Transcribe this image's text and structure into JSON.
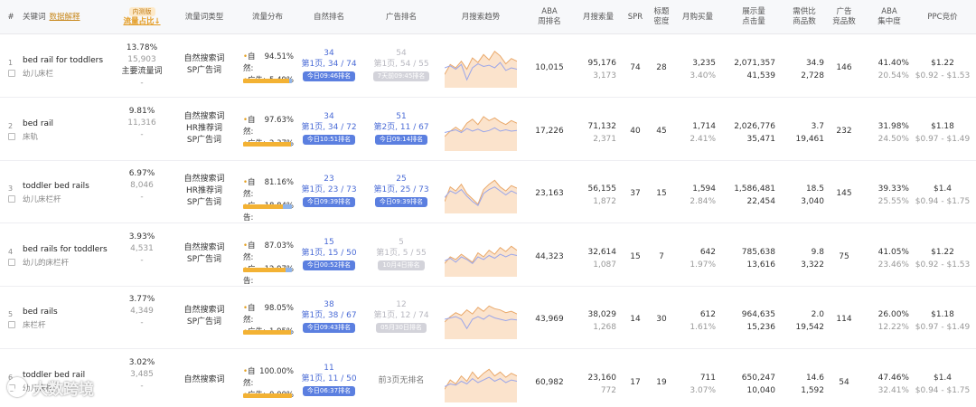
{
  "headers": {
    "idx": "#",
    "keyword": "关键词",
    "keyword_link": "数据解释",
    "new_tag": "内测版",
    "share": "流量占比↓",
    "types": "流量词类型",
    "dist": "流量分布",
    "natural_rank": "自然排名",
    "ad_rank": "广告排名",
    "trend": "月搜索趋势",
    "aba_week": "ABA\n周排名",
    "msearch": "月搜索量",
    "spr": "SPR",
    "title_density": "标题\n密度",
    "msale": "月购买量",
    "impclick": "展示量\n点击量",
    "supply_ratio": "需供比\n商品数",
    "ad_count": "广告\n竞品数",
    "aba_conc": "ABA\n集中度",
    "ppc": "PPC竞价"
  },
  "rows": [
    {
      "idx": "1",
      "kw": "bed rail for toddlers",
      "kw_cn": "幼儿床栏",
      "share": "13.78%",
      "share_n": "15,903",
      "share_main": "主要流量词",
      "share_dash": "-",
      "types": [
        "自然搜索词",
        "SP广告词"
      ],
      "nat_label": "自然:",
      "nat": "94.51%",
      "ad_label": "广告:",
      "ad": "5.49%",
      "ad_frac": 0.0549,
      "nr": "34",
      "nr_d": "第1页, 34 / 74",
      "nr_pill": "今日09:46排名",
      "ar": "54",
      "ar_d": "第1页, 54 / 55",
      "ar_pill": "7天前09:45排名",
      "ar_gray": true,
      "no_ad": "",
      "aba": "10,015",
      "ms": "95,176",
      "ms2": "3,173",
      "spr": "74",
      "td": "28",
      "sale": "3,235",
      "sale2": "3.40%",
      "imp": "2,071,357",
      "clk": "41,539",
      "ratio": "34.9",
      "goods": "2,728",
      "adc": "146",
      "conc": "41.40%",
      "conc2": "20.54%",
      "ppc": "$1.22",
      "ppc2": "$0.92 - $1.53",
      "trend_a": [
        20,
        35,
        30,
        40,
        28,
        45,
        38,
        50,
        42,
        55,
        48,
        36,
        44,
        40
      ],
      "trend_b": [
        30,
        33,
        28,
        35,
        12,
        30,
        36,
        32,
        34,
        30,
        38,
        26,
        30,
        28
      ]
    },
    {
      "idx": "2",
      "kw": "bed rail",
      "kw_cn": "床轨",
      "share": "9.81%",
      "share_n": "11,316",
      "share_main": "",
      "share_dash": "-",
      "types": [
        "自然搜索词",
        "HR推荐词",
        "SP广告词"
      ],
      "nat_label": "自然:",
      "nat": "97.63%",
      "ad_label": "广告:",
      "ad": "2.37%",
      "ad_frac": 0.0237,
      "nr": "34",
      "nr_d": "第1页, 34 / 72",
      "nr_pill": "今日10:51排名",
      "ar": "51",
      "ar_d": "第2页, 11 / 67",
      "ar_pill": "今日09:14排名",
      "ar_gray": false,
      "no_ad": "",
      "aba": "17,226",
      "ms": "71,132",
      "ms2": "2,371",
      "spr": "40",
      "td": "45",
      "sale": "1,714",
      "sale2": "2.41%",
      "imp": "2,026,776",
      "clk": "35,471",
      "ratio": "3.7",
      "goods": "19,461",
      "adc": "232",
      "conc": "31.98%",
      "conc2": "24.50%",
      "ppc": "$1.18",
      "ppc2": "$0.97 - $1.49",
      "trend_a": [
        22,
        30,
        36,
        30,
        42,
        48,
        40,
        52,
        46,
        50,
        44,
        40,
        46,
        42
      ],
      "trend_b": [
        28,
        30,
        32,
        28,
        34,
        30,
        33,
        29,
        31,
        35,
        30,
        32,
        30,
        31
      ]
    },
    {
      "idx": "3",
      "kw": "toddler bed rails",
      "kw_cn": "幼儿床栏杆",
      "share": "6.97%",
      "share_n": "8,046",
      "share_main": "",
      "share_dash": "-",
      "types": [
        "自然搜索词",
        "HR推荐词",
        "SP广告词"
      ],
      "nat_label": "自然:",
      "nat": "81.16%",
      "ad_label": "广告:",
      "ad": "18.84%",
      "ad_frac": 0.1884,
      "nr": "23",
      "nr_d": "第1页, 23 / 73",
      "nr_pill": "今日09:39排名",
      "ar": "25",
      "ar_d": "第1页, 25 / 73",
      "ar_pill": "今日09:39排名",
      "ar_gray": false,
      "no_ad": "",
      "aba": "23,163",
      "ms": "56,155",
      "ms2": "1,872",
      "spr": "37",
      "td": "15",
      "sale": "1,594",
      "sale2": "2.84%",
      "imp": "1,586,481",
      "clk": "22,454",
      "ratio": "18.5",
      "goods": "3,040",
      "adc": "145",
      "conc": "39.33%",
      "conc2": "25.55%",
      "ppc": "$1.4",
      "ppc2": "$0.94 - $1.75",
      "trend_a": [
        18,
        40,
        34,
        44,
        30,
        22,
        14,
        36,
        44,
        50,
        40,
        34,
        42,
        38
      ],
      "trend_b": [
        24,
        34,
        30,
        36,
        26,
        18,
        12,
        30,
        36,
        40,
        34,
        28,
        34,
        30
      ]
    },
    {
      "idx": "4",
      "kw": "bed rails for toddlers",
      "kw_cn": "幼儿的床栏杆",
      "share": "3.93%",
      "share_n": "4,531",
      "share_main": "",
      "share_dash": "-",
      "types": [
        "自然搜索词",
        "SP广告词"
      ],
      "nat_label": "自然:",
      "nat": "87.03%",
      "ad_label": "广告:",
      "ad": "12.97%",
      "ad_frac": 0.1297,
      "nr": "15",
      "nr_d": "第1页, 15 / 50",
      "nr_pill": "今日00:52排名",
      "ar": "5",
      "ar_d": "第1页, 5 / 55",
      "ar_pill": "10月4日排名",
      "ar_gray": true,
      "no_ad": "",
      "aba": "44,323",
      "ms": "32,614",
      "ms2": "1,087",
      "spr": "15",
      "td": "7",
      "sale": "642",
      "sale2": "1.97%",
      "imp": "785,638",
      "clk": "13,616",
      "ratio": "9.8",
      "goods": "3,322",
      "adc": "75",
      "conc": "41.05%",
      "conc2": "23.46%",
      "ppc": "$1.22",
      "ppc2": "$0.92 - $1.53",
      "trend_a": [
        20,
        30,
        26,
        34,
        28,
        22,
        36,
        30,
        40,
        34,
        44,
        38,
        46,
        40
      ],
      "trend_b": [
        24,
        28,
        22,
        30,
        26,
        20,
        30,
        26,
        32,
        28,
        34,
        30,
        34,
        32
      ]
    },
    {
      "idx": "5",
      "kw": "bed rails",
      "kw_cn": "床栏杆",
      "share": "3.77%",
      "share_n": "4,349",
      "share_main": "",
      "share_dash": "-",
      "types": [
        "自然搜索词",
        "SP广告词"
      ],
      "nat_label": "自然:",
      "nat": "98.05%",
      "ad_label": "广告:",
      "ad": "1.95%",
      "ad_frac": 0.0195,
      "nr": "38",
      "nr_d": "第1页, 38 / 67",
      "nr_pill": "今日09:43排名",
      "ar": "12",
      "ar_d": "第1页, 12 / 74",
      "ar_pill": "05月30日排名",
      "ar_gray": true,
      "no_ad": "",
      "aba": "43,969",
      "ms": "38,029",
      "ms2": "1,268",
      "spr": "14",
      "td": "30",
      "sale": "612",
      "sale2": "1.61%",
      "imp": "964,635",
      "clk": "15,236",
      "ratio": "2.0",
      "goods": "19,542",
      "adc": "114",
      "conc": "26.00%",
      "conc2": "12.22%",
      "ppc": "$1.18",
      "ppc2": "$0.97 - $1.49",
      "trend_a": [
        26,
        34,
        40,
        36,
        44,
        38,
        48,
        42,
        50,
        46,
        44,
        40,
        42,
        38
      ],
      "trend_b": [
        30,
        32,
        34,
        30,
        16,
        30,
        34,
        30,
        36,
        32,
        30,
        28,
        30,
        29
      ]
    },
    {
      "idx": "6",
      "kw": "toddler bed rail",
      "kw_cn": "幼儿床栏",
      "share": "3.02%",
      "share_n": "3,485",
      "share_main": "",
      "share_dash": "-",
      "types": [
        "自然搜索词"
      ],
      "nat_label": "自然:",
      "nat": "100.00%",
      "ad_label": "广告:",
      "ad": "0.00%",
      "ad_frac": 0,
      "nr": "11",
      "nr_d": "第1页, 11 / 50",
      "nr_pill": "今日06:37排名",
      "ar": "",
      "ar_d": "",
      "ar_pill": "",
      "ar_gray": false,
      "no_ad": "前3页无排名",
      "aba": "60,982",
      "ms": "23,160",
      "ms2": "772",
      "spr": "17",
      "td": "19",
      "sale": "711",
      "sale2": "3.07%",
      "imp": "650,247",
      "clk": "10,040",
      "ratio": "14.6",
      "goods": "1,592",
      "adc": "54",
      "conc": "47.46%",
      "conc2": "32.41%",
      "ppc": "$1.4",
      "ppc2": "$0.94 - $1.75",
      "trend_a": [
        20,
        34,
        28,
        40,
        32,
        46,
        36,
        44,
        50,
        40,
        46,
        38,
        44,
        40
      ],
      "trend_b": [
        24,
        28,
        26,
        32,
        28,
        36,
        30,
        34,
        38,
        32,
        36,
        30,
        34,
        32
      ]
    }
  ],
  "watermark": "大数跨境",
  "colors": {
    "accent": "#5b7fe0",
    "orange": "#f3b234",
    "trend_line_a": "#e9a86a",
    "trend_line_b": "#9aa6ea",
    "trend_fill": "#fbe3cc"
  }
}
